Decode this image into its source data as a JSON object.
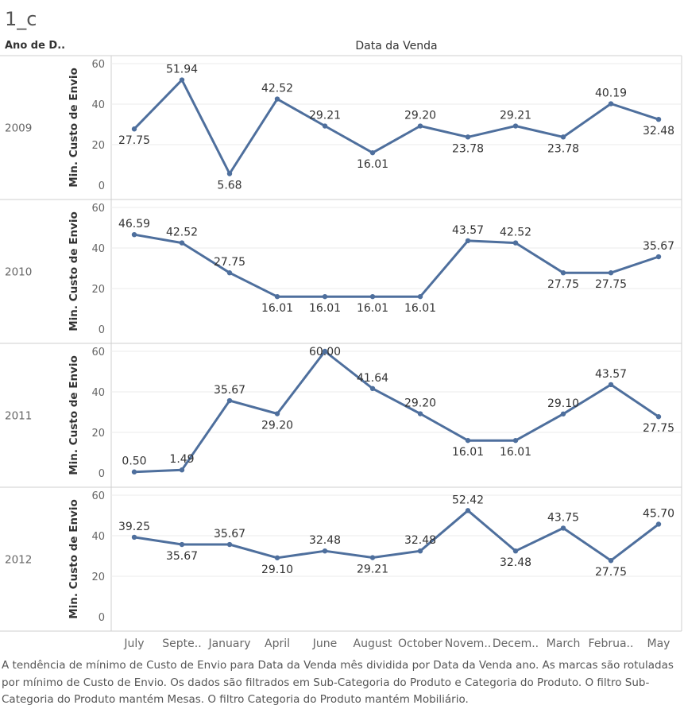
{
  "sheet_title": "1_c",
  "row_header": "Ano de D..",
  "column_header": "Data da Venda",
  "caption": "A tendência de mínimo de Custo de Envio para Data da Venda mês dividida por Data da Venda ano.  As marcas são rotuladas por mínimo de Custo de Envio. Os dados são filtrados em Sub-Categoria do Produto e Categoria do Produto. O filtro Sub-Categoria do Produto mantém Mesas. O filtro Categoria do Produto mantém Mobiliário.",
  "colors": {
    "line": "#4e6f9d",
    "grid": "#ebebeb",
    "border": "#cfcfcf"
  },
  "chart_data": {
    "type": "line",
    "categories": [
      "July",
      "Septe..",
      "January",
      "April",
      "June",
      "August",
      "October",
      "Novem..",
      "Decem..",
      "March",
      "Februa..",
      "May"
    ],
    "ylabel": "Min. Custo de Envio",
    "yticks": [
      0,
      20,
      40,
      60
    ],
    "ylim": [
      0,
      60
    ],
    "panels": [
      {
        "year": "2009",
        "values": [
          27.75,
          51.94,
          5.68,
          42.52,
          29.21,
          16.01,
          29.2,
          23.78,
          29.21,
          23.78,
          40.19,
          32.48
        ],
        "labels": [
          "27.75",
          "51.94",
          "5.68",
          "42.52",
          "29.21",
          "16.01",
          "29.20",
          "23.78",
          "29.21",
          "23.78",
          "40.19",
          "32.48"
        ]
      },
      {
        "year": "2010",
        "values": [
          46.59,
          42.52,
          27.75,
          16.01,
          16.01,
          16.01,
          16.01,
          43.57,
          42.52,
          27.75,
          27.75,
          35.67
        ],
        "labels": [
          "46.59",
          "42.52",
          "27.75",
          "16.01",
          "16.01",
          "16.01",
          "16.01",
          "43.57",
          "42.52",
          "27.75",
          "27.75",
          "35.67"
        ]
      },
      {
        "year": "2011",
        "values": [
          0.5,
          1.49,
          35.67,
          29.2,
          60.0,
          41.64,
          29.2,
          16.01,
          16.01,
          29.1,
          43.57,
          27.75
        ],
        "labels": [
          "0.50",
          "1.49",
          "35.67",
          "29.20",
          "60.00",
          "41.64",
          "29.20",
          "16.01",
          "16.01",
          "29.10",
          "43.57",
          "27.75"
        ]
      },
      {
        "year": "2012",
        "values": [
          39.25,
          35.67,
          35.67,
          29.1,
          32.48,
          29.21,
          32.48,
          52.42,
          32.48,
          43.75,
          27.75,
          45.7
        ],
        "labels": [
          "39.25",
          "35.67",
          "35.67",
          "29.10",
          "32.48",
          "29.21",
          "32.48",
          "52.42",
          "32.48",
          "43.75",
          "27.75",
          "45.70"
        ]
      }
    ]
  }
}
